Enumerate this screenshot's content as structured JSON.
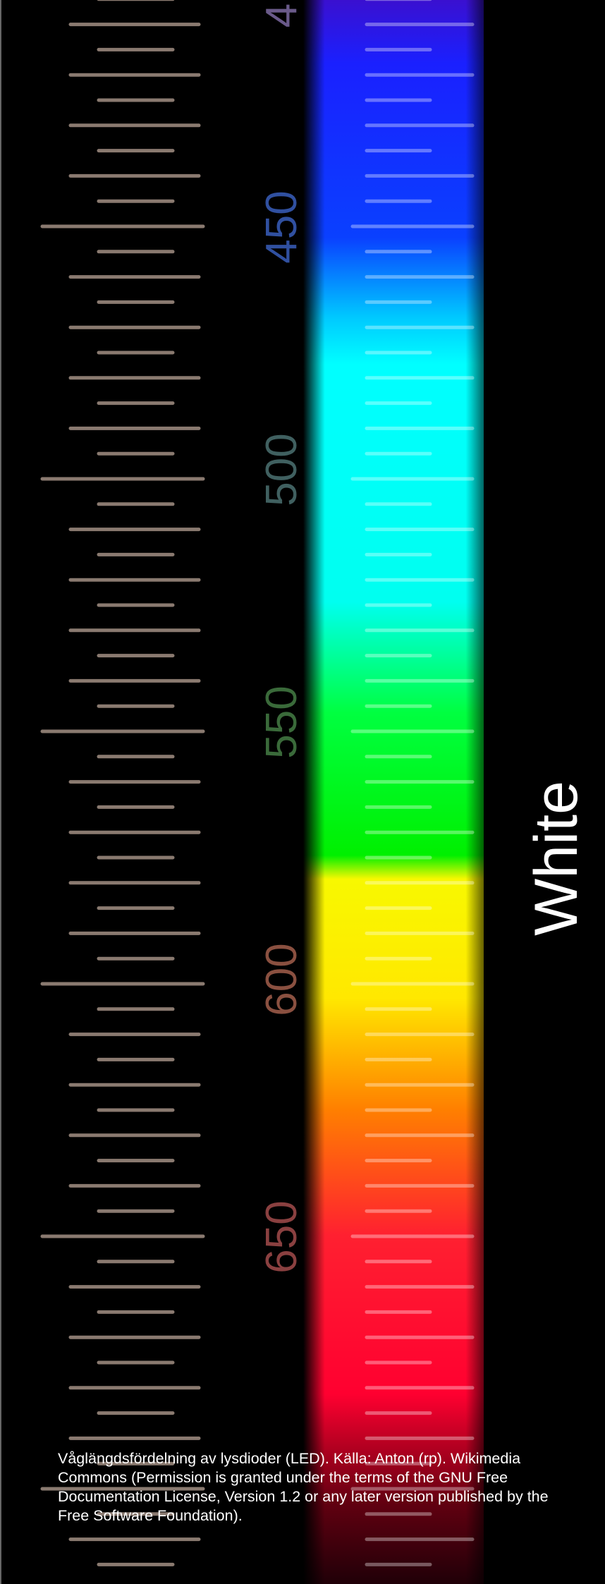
{
  "scale_labels": [
    "4",
    "450",
    "500",
    "550",
    "600",
    "650"
  ],
  "band_label": "White",
  "caption": "Våglängdsfördelning av lysdioder (LED). Källa: Anton (rp). Wikimedia Commons (Permission is granted under the terms of the GNU Free Documentation License, Version 1.2 or any later version published by the Free Software Foundation)."
}
